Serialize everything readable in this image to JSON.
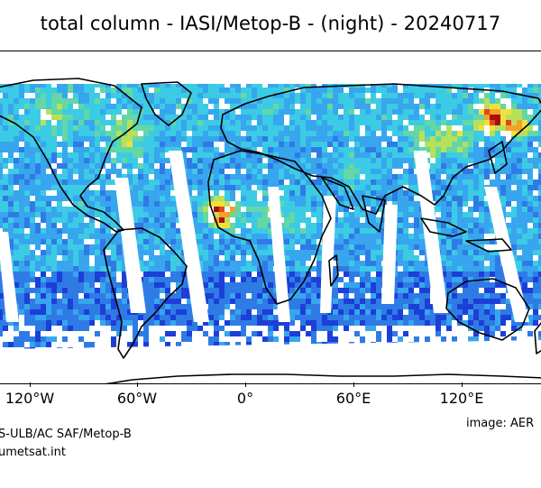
{
  "title": "total column - IASI/Metop-B - (night) - 20240717",
  "map": {
    "projection": "plate-carree",
    "lon_ticks": [
      "120°W",
      "60°W",
      "0°",
      "60°E",
      "120°E"
    ],
    "coastline_color": "#000000",
    "colormap": [
      "#0a1a8c",
      "#1c3fd8",
      "#2f7be6",
      "#37a6ee",
      "#3ccbe4",
      "#63d7a4",
      "#b9e05a",
      "#f2e03a",
      "#f5a027",
      "#e2451c",
      "#a8100f"
    ],
    "no_data_color": "#ffffff"
  },
  "credits": {
    "left_line1": "S-ULB/AC SAF/Metop-B",
    "left_line2": "umetsat.int",
    "right": "image: AER"
  }
}
